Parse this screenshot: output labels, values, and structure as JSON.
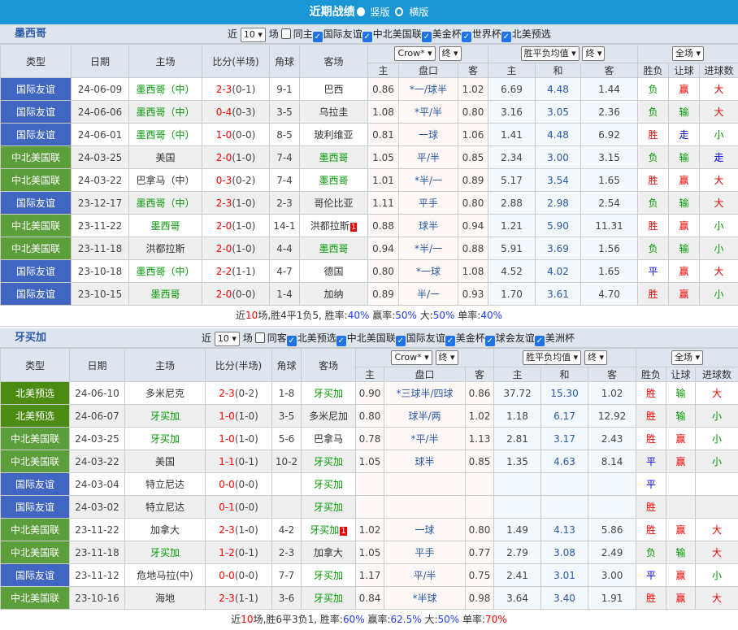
{
  "header": {
    "title": "近期战绩",
    "options": [
      "竖版",
      "横版"
    ],
    "selected": "竖版"
  },
  "colors": {
    "title_bar": "#1a96d4",
    "type_friendly": "#4166c2",
    "type_nations": "#5b9e3b",
    "type_qualifier": "#4b8b12"
  },
  "sections": [
    {
      "team": "墨西哥",
      "near_label": "近",
      "count": "10",
      "unit": "场",
      "same_label": "同主",
      "filters": [
        "国际友谊",
        "中北美国联",
        "美金杯",
        "世界杯",
        "北美预选"
      ],
      "columns": [
        "类型",
        "日期",
        "主场",
        "比分(半场)",
        "角球",
        "客场"
      ],
      "odds_company": "Crow*",
      "odds_stage": "终",
      "euro_type": "胜平负均值",
      "euro_stage": "终",
      "scope": "全场",
      "sub_columns": [
        "主",
        "盘口",
        "客",
        "主",
        "和",
        "客",
        "胜负",
        "让球",
        "进球数"
      ],
      "rows": [
        {
          "type": "国际友谊",
          "date": "24-06-09",
          "home": "墨西哥（中）",
          "score": "2-3",
          "half": "(0-1)",
          "corner": "9-1",
          "away": "巴西",
          "ah": "0.86",
          "line": "*一/球半",
          "aa": "1.02",
          "eh": "6.69",
          "ed": "4.48",
          "ea": "1.44",
          "res": "负",
          "hcp": "赢",
          "ou": "大",
          "hl": true,
          "al": false
        },
        {
          "type": "国际友谊",
          "date": "24-06-06",
          "home": "墨西哥（中）",
          "score": "0-4",
          "half": "(0-3)",
          "corner": "3-5",
          "away": "乌拉圭",
          "ah": "1.08",
          "line": "*平/半",
          "aa": "0.80",
          "eh": "3.16",
          "ed": "3.05",
          "ea": "2.36",
          "res": "负",
          "hcp": "输",
          "ou": "大",
          "hl": true,
          "al": false
        },
        {
          "type": "国际友谊",
          "date": "24-06-01",
          "home": "墨西哥（中）",
          "score": "1-0",
          "half": "(0-0)",
          "corner": "8-5",
          "away": "玻利维亚",
          "ah": "0.81",
          "line": "一球",
          "aa": "1.06",
          "eh": "1.41",
          "ed": "4.48",
          "ea": "6.92",
          "res": "胜",
          "hcp": "走",
          "ou": "小",
          "hl": true,
          "al": false
        },
        {
          "type": "中北美国联",
          "date": "24-03-25",
          "home": "美国",
          "score": "2-0",
          "half": "(1-0)",
          "corner": "7-4",
          "away": "墨西哥",
          "ah": "1.05",
          "line": "平/半",
          "aa": "0.85",
          "eh": "2.34",
          "ed": "3.00",
          "ea": "3.15",
          "res": "负",
          "hcp": "输",
          "ou": "走",
          "hl": false,
          "al": true
        },
        {
          "type": "中北美国联",
          "date": "24-03-22",
          "home": "巴拿马（中）",
          "score": "0-3",
          "half": "(0-2)",
          "corner": "7-4",
          "away": "墨西哥",
          "ah": "1.01",
          "line": "*半/一",
          "aa": "0.89",
          "eh": "5.17",
          "ed": "3.54",
          "ea": "1.65",
          "res": "胜",
          "hcp": "赢",
          "ou": "大",
          "hl": false,
          "al": true
        },
        {
          "type": "国际友谊",
          "date": "23-12-17",
          "home": "墨西哥（中）",
          "score": "2-3",
          "half": "(1-0)",
          "corner": "2-3",
          "away": "哥伦比亚",
          "ah": "1.11",
          "line": "平手",
          "aa": "0.80",
          "eh": "2.88",
          "ed": "2.98",
          "ea": "2.54",
          "res": "负",
          "hcp": "输",
          "ou": "大",
          "hl": true,
          "al": false
        },
        {
          "type": "中北美国联",
          "date": "23-11-22",
          "home": "墨西哥",
          "score": "2-0",
          "half": "(1-0)",
          "corner": "14-1",
          "away": "洪都拉斯",
          "badge": "1",
          "ah": "0.88",
          "line": "球半",
          "aa": "0.94",
          "eh": "1.21",
          "ed": "5.90",
          "ea": "11.31",
          "res": "胜",
          "hcp": "赢",
          "ou": "小",
          "hl": true,
          "al": false
        },
        {
          "type": "中北美国联",
          "date": "23-11-18",
          "home": "洪都拉斯",
          "score": "2-0",
          "half": "(1-0)",
          "corner": "4-4",
          "away": "墨西哥",
          "ah": "0.94",
          "line": "*半/一",
          "aa": "0.88",
          "eh": "5.91",
          "ed": "3.69",
          "ea": "1.56",
          "res": "负",
          "hcp": "输",
          "ou": "小",
          "hl": false,
          "al": true
        },
        {
          "type": "国际友谊",
          "date": "23-10-18",
          "home": "墨西哥（中）",
          "score": "2-2",
          "half": "(1-1)",
          "corner": "4-7",
          "away": "德国",
          "ah": "0.80",
          "line": "*一球",
          "aa": "1.08",
          "eh": "4.52",
          "ed": "4.02",
          "ea": "1.65",
          "res": "平",
          "hcp": "赢",
          "ou": "大",
          "hl": true,
          "al": false
        },
        {
          "type": "国际友谊",
          "date": "23-10-15",
          "home": "墨西哥",
          "score": "2-0",
          "half": "(0-0)",
          "corner": "1-4",
          "away": "加纳",
          "ah": "0.89",
          "line": "半/一",
          "aa": "0.93",
          "eh": "1.70",
          "ed": "3.61",
          "ea": "4.70",
          "res": "胜",
          "hcp": "赢",
          "ou": "小",
          "hl": true,
          "al": false
        }
      ],
      "summary": {
        "p1": "近",
        "n": "10",
        "p2": "场,胜4平1负5, 胜率:",
        "win": "40%",
        "p3": " 赢率:",
        "hcp": "50%",
        "p4": " 大:",
        "big": "50%",
        "p5": " 单率:",
        "odd": "40%"
      }
    },
    {
      "team": "牙买加",
      "near_label": "近",
      "count": "10",
      "unit": "场",
      "same_label": "同客",
      "filters": [
        "北美预选",
        "中北美国联",
        "国际友谊",
        "美金杯",
        "球会友谊",
        "美洲杯"
      ],
      "columns": [
        "类型",
        "日期",
        "主场",
        "比分(半场)",
        "角球",
        "客场"
      ],
      "odds_company": "Crow*",
      "odds_stage": "终",
      "euro_type": "胜平负均值",
      "euro_stage": "终",
      "scope": "全场",
      "sub_columns": [
        "主",
        "盘口",
        "客",
        "主",
        "和",
        "客",
        "胜负",
        "让球",
        "进球数"
      ],
      "rows": [
        {
          "type": "北美预选",
          "date": "24-06-10",
          "home": "多米尼克",
          "score": "2-3",
          "half": "(0-2)",
          "corner": "1-8",
          "away": "牙买加",
          "ah": "0.90",
          "line": "*三球半/四球",
          "aa": "0.86",
          "eh": "37.72",
          "ed": "15.30",
          "ea": "1.02",
          "res": "胜",
          "hcp": "输",
          "ou": "大",
          "hl": false,
          "al": true
        },
        {
          "type": "北美预选",
          "date": "24-06-07",
          "home": "牙买加",
          "score": "1-0",
          "half": "(1-0)",
          "corner": "3-5",
          "away": "多米尼加",
          "ah": "0.80",
          "line": "球半/两",
          "aa": "1.02",
          "eh": "1.18",
          "ed": "6.17",
          "ea": "12.92",
          "res": "胜",
          "hcp": "输",
          "ou": "小",
          "hl": true,
          "al": false
        },
        {
          "type": "中北美国联",
          "date": "24-03-25",
          "home": "牙买加",
          "score": "1-0",
          "half": "(1-0)",
          "corner": "5-6",
          "away": "巴拿马",
          "ah": "0.78",
          "line": "*平/半",
          "aa": "1.13",
          "eh": "2.81",
          "ed": "3.17",
          "ea": "2.43",
          "res": "胜",
          "hcp": "赢",
          "ou": "小",
          "hl": true,
          "al": false
        },
        {
          "type": "中北美国联",
          "date": "24-03-22",
          "home": "美国",
          "score": "1-1",
          "half": "(0-1)",
          "corner": "10-2",
          "away": "牙买加",
          "ah": "1.05",
          "line": "球半",
          "aa": "0.85",
          "eh": "1.35",
          "ed": "4.63",
          "ea": "8.14",
          "res": "平",
          "hcp": "赢",
          "ou": "小",
          "hl": false,
          "al": true
        },
        {
          "type": "国际友谊",
          "date": "24-03-04",
          "home": "特立尼达",
          "score": "0-0",
          "half": "(0-0)",
          "corner": "",
          "away": "牙买加",
          "ah": "",
          "line": "",
          "aa": "",
          "eh": "",
          "ed": "",
          "ea": "",
          "res": "平",
          "hcp": "",
          "ou": "",
          "hl": false,
          "al": true
        },
        {
          "type": "国际友谊",
          "date": "24-03-02",
          "home": "特立尼达",
          "score": "0-1",
          "half": "(0-0)",
          "corner": "",
          "away": "牙买加",
          "ah": "",
          "line": "",
          "aa": "",
          "eh": "",
          "ed": "",
          "ea": "",
          "res": "胜",
          "hcp": "",
          "ou": "",
          "hl": false,
          "al": true
        },
        {
          "type": "中北美国联",
          "date": "23-11-22",
          "home": "加拿大",
          "score": "2-3",
          "half": "(1-0)",
          "corner": "4-2",
          "away": "牙买加",
          "badge": "1",
          "ah": "1.02",
          "line": "一球",
          "aa": "0.80",
          "eh": "1.49",
          "ed": "4.13",
          "ea": "5.86",
          "res": "胜",
          "hcp": "赢",
          "ou": "大",
          "hl": false,
          "al": true
        },
        {
          "type": "中北美国联",
          "date": "23-11-18",
          "home": "牙买加",
          "score": "1-2",
          "half": "(0-1)",
          "corner": "2-3",
          "away": "加拿大",
          "ah": "1.05",
          "line": "平手",
          "aa": "0.77",
          "eh": "2.79",
          "ed": "3.08",
          "ea": "2.49",
          "res": "负",
          "hcp": "输",
          "ou": "大",
          "hl": true,
          "al": false
        },
        {
          "type": "国际友谊",
          "date": "23-11-12",
          "home": "危地马拉(中)",
          "score": "0-0",
          "half": "(0-0)",
          "corner": "7-7",
          "away": "牙买加",
          "ah": "1.17",
          "line": "平/半",
          "aa": "0.75",
          "eh": "2.41",
          "ed": "3.01",
          "ea": "3.00",
          "res": "平",
          "hcp": "赢",
          "ou": "小",
          "hl": false,
          "al": true
        },
        {
          "type": "中北美国联",
          "date": "23-10-16",
          "home": "海地",
          "score": "2-3",
          "half": "(1-1)",
          "corner": "3-6",
          "away": "牙买加",
          "ah": "0.84",
          "line": "*半球",
          "aa": "0.98",
          "eh": "3.64",
          "ed": "3.40",
          "ea": "1.91",
          "res": "胜",
          "hcp": "赢",
          "ou": "大",
          "hl": false,
          "al": true
        }
      ],
      "summary": {
        "p1": "近",
        "n": "10",
        "p2": "场,胜6平3负1, 胜率:",
        "win": "60%",
        "p3": " 赢率:",
        "hcp": "62.5%",
        "p4": " 大:",
        "big": "50%",
        "p5": " 单率:",
        "odd": "70%"
      }
    }
  ]
}
